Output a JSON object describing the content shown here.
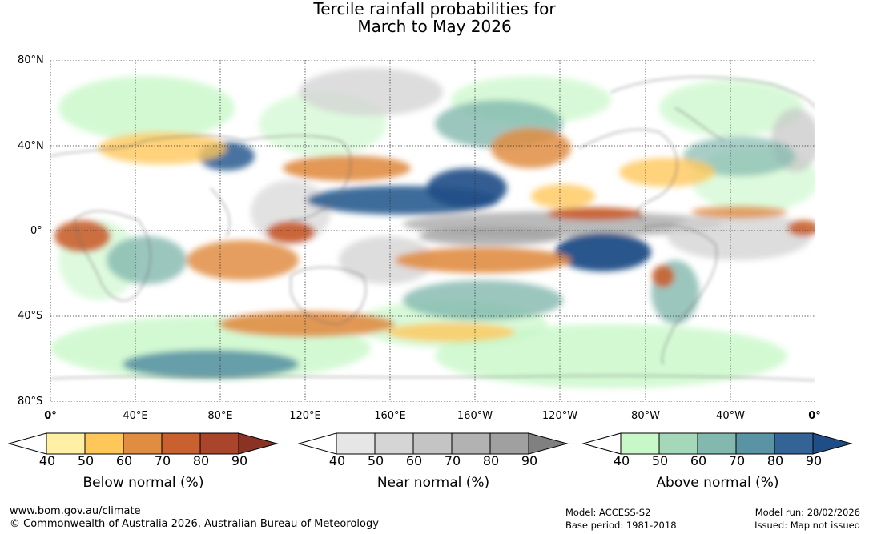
{
  "title_line1": "Tercile rainfall probabilities for",
  "title_line2": "March to May 2026",
  "lat_labels": [
    "80°N",
    "40°N",
    "0°",
    "40°S",
    "80°S"
  ],
  "lon_labels": [
    "0°",
    "40°E",
    "80°E",
    "120°E",
    "160°E",
    "160°W",
    "120°W",
    "80°W",
    "40°W",
    "0°"
  ],
  "colorbars": [
    {
      "label": "Below normal (%)",
      "ticks": [
        "40",
        "50",
        "60",
        "70",
        "80",
        "90"
      ],
      "colors": [
        "#ffffff",
        "#fff0a5",
        "#ffc75a",
        "#e08d42",
        "#c9602f",
        "#a9452a",
        "#8a3324"
      ]
    },
    {
      "label": "Near normal (%)",
      "ticks": [
        "40",
        "50",
        "60",
        "70",
        "80",
        "90"
      ],
      "colors": [
        "#ffffff",
        "#e6e6e6",
        "#d5d5d5",
        "#c4c4c4",
        "#b2b2b2",
        "#a0a0a0",
        "#808080"
      ]
    },
    {
      "label": "Above normal (%)",
      "ticks": [
        "40",
        "50",
        "60",
        "70",
        "80",
        "90"
      ],
      "colors": [
        "#ffffff",
        "#c8f7c8",
        "#a5d8b8",
        "#82b8ae",
        "#5a94a4",
        "#346496",
        "#1f4e87"
      ]
    }
  ],
  "footer": {
    "url": "www.bom.gov.au/climate",
    "copyright": "© Commonwealth of Australia 2026, Australian Bureau of Meteorology",
    "model": "Model: ACCESS-S2",
    "base_period": "Base period: 1981-2018",
    "model_run": "Model run: 28/02/2026",
    "issued": "Issued: Map not issued"
  }
}
